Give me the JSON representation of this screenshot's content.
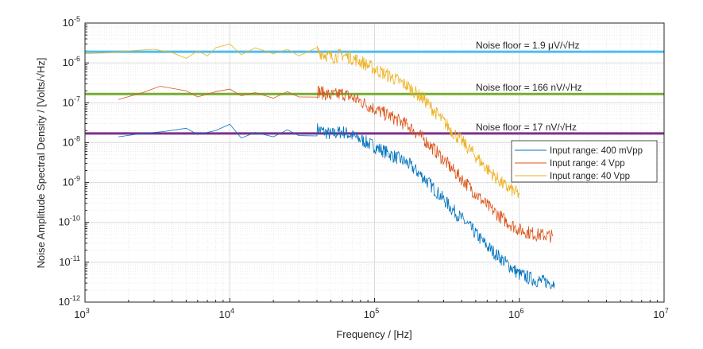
{
  "chart_data": {
    "type": "line",
    "xscale": "log",
    "yscale": "log",
    "xlabel": "Frequency / [Hz]",
    "ylabel": "Noise Amplitude Spectral Density / [Volts/√Hz]",
    "xlim": [
      1000,
      10000000
    ],
    "ylim": [
      1e-12,
      1e-05
    ],
    "grid": true,
    "xticks": [
      {
        "base": "10",
        "exp": "3"
      },
      {
        "base": "10",
        "exp": "4"
      },
      {
        "base": "10",
        "exp": "5"
      },
      {
        "base": "10",
        "exp": "6"
      },
      {
        "base": "10",
        "exp": "7"
      }
    ],
    "yticks": [
      {
        "base": "10",
        "exp": "-5"
      },
      {
        "base": "10",
        "exp": "-6"
      },
      {
        "base": "10",
        "exp": "-7"
      },
      {
        "base": "10",
        "exp": "-8"
      },
      {
        "base": "10",
        "exp": "-9"
      },
      {
        "base": "10",
        "exp": "-10"
      },
      {
        "base": "10",
        "exp": "-11"
      },
      {
        "base": "10",
        "exp": "-12"
      }
    ],
    "legend_position": "right-middle",
    "series": [
      {
        "name": "Input range: 400 mVpp",
        "color": "#0072bd",
        "x": [
          1700,
          2500,
          3500,
          5000,
          6000,
          8000,
          10000,
          12000,
          15000,
          20000,
          25000,
          30000,
          40000,
          50000,
          60000,
          80000,
          100000,
          130000,
          170000,
          220000,
          280000,
          350000,
          450000,
          600000,
          800000,
          1000000,
          1300000,
          1750000
        ],
        "y": [
          1.4e-08,
          1.7e-08,
          1.9e-08,
          2.3e-08,
          1.6e-08,
          2e-08,
          2.9e-08,
          1.3e-08,
          1.8e-08,
          1.4e-08,
          2.1e-08,
          1.5e-08,
          2.2e-08,
          1.6e-08,
          1.9e-08,
          1.2e-08,
          8e-09,
          5e-09,
          3e-09,
          1.3e-09,
          5e-10,
          2e-10,
          8e-11,
          2.5e-11,
          1e-11,
          5e-12,
          3.5e-12,
          3e-12
        ]
      },
      {
        "name": "Input range: 4 Vpp",
        "color": "#d95319",
        "x": [
          1700,
          2500,
          3300,
          5000,
          6000,
          8000,
          10000,
          12000,
          15000,
          20000,
          25000,
          30000,
          40000,
          50000,
          60000,
          80000,
          100000,
          130000,
          170000,
          220000,
          280000,
          350000,
          450000,
          600000,
          800000,
          1000000,
          1300000,
          1700000
        ],
        "y": [
          1.2e-07,
          1.8e-07,
          2.6e-07,
          2e-07,
          1.4e-07,
          1.9e-07,
          2.2e-07,
          1.5e-07,
          1.8e-07,
          1.3e-07,
          1.9e-07,
          1.4e-07,
          2e-07,
          1.5e-07,
          1.7e-07,
          1.1e-07,
          7e-08,
          4.5e-08,
          2.7e-08,
          1.2e-08,
          5e-09,
          2e-09,
          8e-10,
          2.6e-10,
          1.1e-10,
          6.5e-11,
          5e-11,
          4.5e-11
        ]
      },
      {
        "name": "Input range: 40 Vpp",
        "color": "#edb120",
        "x": [
          1000,
          1500,
          2000,
          3000,
          4000,
          5000,
          6000,
          7000,
          8000,
          10000,
          12000,
          15000,
          20000,
          25000,
          30000,
          40000,
          50000,
          60000,
          80000,
          100000,
          130000,
          170000,
          220000,
          280000,
          350000,
          450000,
          600000,
          800000,
          1000000
        ],
        "y": [
          1.7e-06,
          1.8e-06,
          2e-06,
          2.2e-06,
          1.8e-06,
          1.3e-06,
          2e-06,
          1.5e-06,
          2.4e-06,
          3e-06,
          1.6e-06,
          2.4e-06,
          1.7e-06,
          2.2e-06,
          1.5e-06,
          2e-06,
          1.4e-06,
          1.6e-06,
          1.1e-06,
          7e-07,
          4.5e-07,
          2.6e-07,
          1.2e-07,
          4.5e-08,
          1.8e-08,
          7e-09,
          2.2e-09,
          8e-10,
          5e-10
        ]
      }
    ],
    "noise_floors": [
      {
        "label": "Noise floor = 1.9 μV/√Hz",
        "value": 1.9e-06,
        "color": "#4dbeee"
      },
      {
        "label": "Noise floor = 166 nV/√Hz",
        "value": 1.66e-07,
        "color": "#77ac30"
      },
      {
        "label": "Noise floor = 17 nV/√Hz",
        "value": 1.7e-08,
        "color": "#7e2f8e"
      }
    ]
  }
}
